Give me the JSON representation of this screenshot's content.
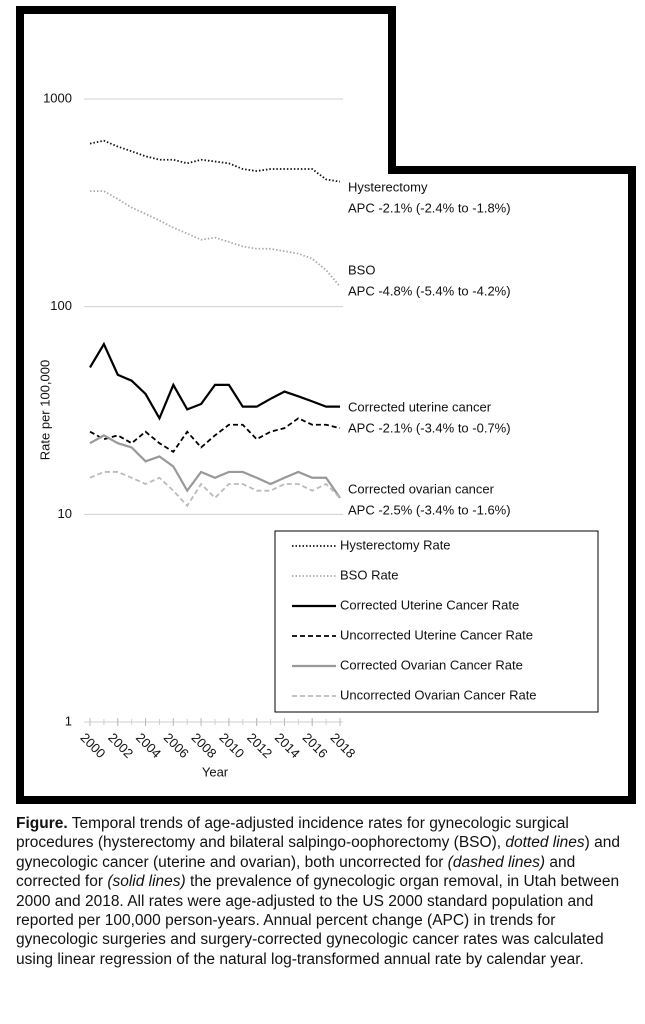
{
  "chart_data": {
    "type": "line",
    "log_scale": true,
    "x": [
      2000,
      2001,
      2002,
      2003,
      2004,
      2005,
      2006,
      2007,
      2008,
      2009,
      2010,
      2011,
      2012,
      2013,
      2014,
      2015,
      2016,
      2017,
      2018
    ],
    "xlim": [
      2000,
      2018
    ],
    "xticks": [
      2000,
      2002,
      2004,
      2006,
      2008,
      2010,
      2012,
      2014,
      2016,
      2018
    ],
    "ylim": [
      1,
      1000
    ],
    "yticks": [
      1,
      10,
      100,
      1000
    ],
    "grid": true,
    "x_label": "Year",
    "y_label": "Rate per 100,000",
    "series": [
      {
        "name": "Hysterectomy Rate",
        "color": "#111111",
        "dash": "dotted",
        "values": [
          610,
          630,
          590,
          560,
          530,
          510,
          510,
          490,
          510,
          500,
          490,
          460,
          450,
          460,
          460,
          460,
          460,
          410,
          400
        ]
      },
      {
        "name": "BSO Rate",
        "color": "#aaaaaa",
        "dash": "dotted",
        "values": [
          360,
          360,
          330,
          300,
          280,
          260,
          240,
          225,
          210,
          215,
          205,
          195,
          190,
          190,
          185,
          180,
          170,
          150,
          125
        ]
      },
      {
        "name": "Corrected Uterine Cancer Rate",
        "color": "#000000",
        "dash": "solid",
        "values": [
          51,
          66,
          47,
          44,
          38,
          29,
          42,
          32,
          34,
          42,
          42,
          33,
          33,
          36,
          39,
          37,
          35,
          33,
          33
        ]
      },
      {
        "name": "Uncorrected Uterine Cancer Rate",
        "color": "#000000",
        "dash": "dashed",
        "values": [
          25,
          23,
          24,
          22,
          25,
          22,
          20,
          25,
          21,
          24,
          27,
          27,
          23,
          25,
          26,
          29,
          27,
          27,
          26
        ]
      },
      {
        "name": "Corrected Ovarian Cancer Rate",
        "color": "#999999",
        "dash": "solid",
        "values": [
          22,
          24,
          22,
          21,
          18,
          19,
          17,
          13,
          16,
          15,
          16,
          16,
          15,
          14,
          15,
          16,
          15,
          15,
          12
        ]
      },
      {
        "name": "Uncorrected Ovarian Cancer Rate",
        "color": "#bbbbbb",
        "dash": "dashed",
        "values": [
          15,
          16,
          16,
          15,
          14,
          15,
          13,
          11,
          14,
          12,
          14,
          14,
          13,
          13,
          14,
          14,
          13,
          14,
          12
        ]
      }
    ],
    "annotations": [
      "Hysterectomy",
      "APC -2.1% (-2.4% to -1.8%)",
      "BSO",
      "APC -4.8% (-5.4% to -4.2%)",
      "Corrected uterine cancer",
      "APC -2.1% (-3.4% to -0.7%)",
      "Corrected ovarian cancer",
      "APC -2.5% (-3.4% to -1.6%)"
    ]
  },
  "caption": [
    {
      "text": "Figure.",
      "style": "bold"
    },
    {
      "text": " Temporal trends of age-adjusted incidence rates for gynecologic surgical procedures (hysterectomy and bilateral salpingo-oophorectomy (BSO), ",
      "style": "normal"
    },
    {
      "text": "dotted lines",
      "style": "italic"
    },
    {
      "text": ") and gynecologic cancer (uterine and ovarian), both uncorrected for ",
      "style": "normal"
    },
    {
      "text": "(dashed lines)",
      "style": "italic"
    },
    {
      "text": " and corrected for ",
      "style": "normal"
    },
    {
      "text": "(solid lines)",
      "style": "italic"
    },
    {
      "text": " the prevalence of gynecologic organ removal, in Utah between 2000 and 2018. All rates were age-adjusted to the US 2000 standard population and reported per 100,000 person-years. Annual percent change (APC) in trends for gynecologic surgeries and surgery-corrected gynecologic cancer rates was calculated using linear regression of the natural log-transformed annual rate by calendar year.",
      "style": "normal"
    }
  ]
}
